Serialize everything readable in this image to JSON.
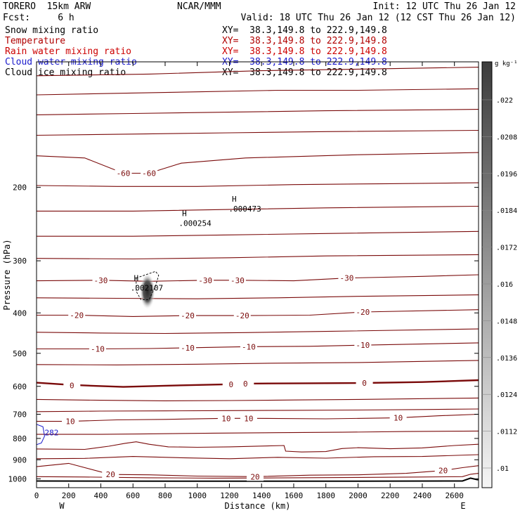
{
  "header": {
    "model": "TORERO  15km ARW",
    "org": "NCAR/MMM",
    "init": "Init: 12 UTC Thu 26 Jan 12",
    "fcst": "Fcst:     6 h",
    "valid": "Valid: 18 UTC Thu 26 Jan 12 (12 CST Thu 26 Jan 12)"
  },
  "fields": [
    {
      "label": "Snow mixing ratio",
      "xy": "XY=  38.3,149.8 to 222.9,149.8",
      "color": "#000000"
    },
    {
      "label": "Temperature",
      "xy": "XY=  38.3,149.8 to 222.9,149.8",
      "color": "#b00000"
    },
    {
      "label": "Rain water mixing ratio",
      "xy": "XY=  38.3,149.8 to 222.9,149.8",
      "color": "#cc0000"
    },
    {
      "label": "Cloud water mixing ratio",
      "xy": "XY=  38.3,149.8 to 222.9,149.8",
      "color": "#0000aa"
    },
    {
      "label": "Cloud ice mixing ratio",
      "xy": "XY=  38.3,149.8 to 222.9,149.8",
      "color": "#000000"
    }
  ],
  "colors": {
    "temperature": "#7a0a0a",
    "cloud_water": "#1a1acc",
    "cloud_ice": "#000000",
    "terrain": "#000000"
  },
  "chart_data": {
    "type": "contour",
    "xlabel": "Distance (km)",
    "ylabel": "Pressure (hPa)",
    "xlim": [
      0,
      2750
    ],
    "ylim": [
      1050,
      100
    ],
    "xticks": [
      0,
      200,
      400,
      600,
      800,
      1000,
      1200,
      1400,
      1600,
      1800,
      2000,
      2200,
      2400,
      2600
    ],
    "yticks": [
      200,
      300,
      400,
      500,
      600,
      700,
      800,
      900,
      1000
    ],
    "x_end_labels": {
      "left": "W",
      "right": "E"
    },
    "colorbar": {
      "units": "g kg⁻¹",
      "labels": [
        ".022",
        ".0208",
        ".0196",
        ".0184",
        ".0172",
        ".016",
        ".0148",
        ".0136",
        ".0124",
        ".0112",
        ".01"
      ]
    },
    "temperature_labels": [
      {
        "x": 540,
        "p": 185,
        "text": "-60"
      },
      {
        "x": 700,
        "p": 185,
        "text": "-60"
      },
      {
        "x": 400,
        "p": 334,
        "text": "-30"
      },
      {
        "x": 1050,
        "p": 334,
        "text": "-30"
      },
      {
        "x": 1250,
        "p": 334,
        "text": "-30"
      },
      {
        "x": 1930,
        "p": 330,
        "text": "-30"
      },
      {
        "x": 250,
        "p": 405,
        "text": "-20"
      },
      {
        "x": 940,
        "p": 406,
        "text": "-20"
      },
      {
        "x": 1280,
        "p": 406,
        "text": "-20"
      },
      {
        "x": 2030,
        "p": 398,
        "text": "-20"
      },
      {
        "x": 380,
        "p": 488,
        "text": "-10"
      },
      {
        "x": 940,
        "p": 485,
        "text": "-10"
      },
      {
        "x": 1320,
        "p": 482,
        "text": "-10"
      },
      {
        "x": 2030,
        "p": 478,
        "text": "-10"
      },
      {
        "x": 220,
        "p": 597,
        "text": "0"
      },
      {
        "x": 1210,
        "p": 593,
        "text": "0"
      },
      {
        "x": 1300,
        "p": 591,
        "text": "0"
      },
      {
        "x": 2040,
        "p": 589,
        "text": "0"
      },
      {
        "x": 210,
        "p": 728,
        "text": "10"
      },
      {
        "x": 1180,
        "p": 716,
        "text": "10"
      },
      {
        "x": 1320,
        "p": 716,
        "text": "10"
      },
      {
        "x": 2250,
        "p": 714,
        "text": "10"
      },
      {
        "x": 460,
        "p": 976,
        "text": "20"
      },
      {
        "x": 1360,
        "p": 988,
        "text": "20"
      },
      {
        "x": 2530,
        "p": 955,
        "text": "20"
      }
    ],
    "highs": [
      {
        "x": 1230,
        "p": 220,
        "label": ".000473"
      },
      {
        "x": 920,
        "p": 238,
        "label": ".000254"
      },
      {
        "x": 620,
        "p": 340,
        "label": ".002107"
      }
    ],
    "cloud_water_label": {
      "x": 50,
      "p": 775,
      "text": "282"
    }
  }
}
